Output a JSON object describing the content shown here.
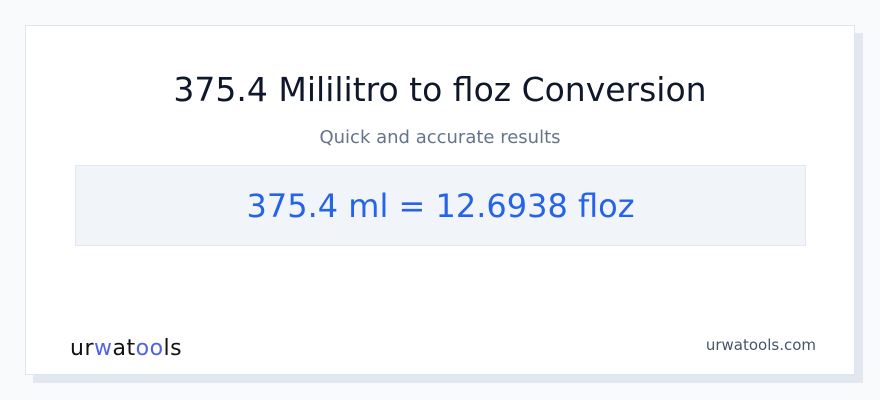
{
  "title": "375.4 Mililitro to floz Conversion",
  "subtitle": "Quick and accurate results",
  "result": "375.4 ml = 12.6938 floz",
  "logo": {
    "part1": "ur",
    "part2": "w",
    "part3": "at",
    "part4": "oo",
    "part5": "ls"
  },
  "site": "urwatools.com",
  "colors": {
    "accent": "#2563eb",
    "background": "#f8fafc",
    "result_bg": "#f1f5f9"
  }
}
